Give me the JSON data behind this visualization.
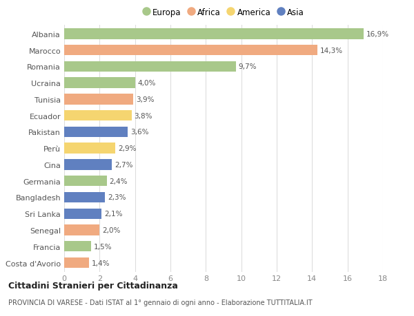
{
  "countries": [
    "Albania",
    "Marocco",
    "Romania",
    "Ucraina",
    "Tunisia",
    "Ecuador",
    "Pakistan",
    "Perù",
    "Cina",
    "Germania",
    "Bangladesh",
    "Sri Lanka",
    "Senegal",
    "Francia",
    "Costa d'Avorio"
  ],
  "values": [
    16.9,
    14.3,
    9.7,
    4.0,
    3.9,
    3.8,
    3.6,
    2.9,
    2.7,
    2.4,
    2.3,
    2.1,
    2.0,
    1.5,
    1.4
  ],
  "labels": [
    "16,9%",
    "14,3%",
    "9,7%",
    "4,0%",
    "3,9%",
    "3,8%",
    "3,6%",
    "2,9%",
    "2,7%",
    "2,4%",
    "2,3%",
    "2,1%",
    "2,0%",
    "1,5%",
    "1,4%"
  ],
  "continents": [
    "Europa",
    "Africa",
    "Europa",
    "Europa",
    "Africa",
    "America",
    "Asia",
    "America",
    "Asia",
    "Europa",
    "Asia",
    "Asia",
    "Africa",
    "Europa",
    "Africa"
  ],
  "continent_colors": {
    "Europa": "#a8c88a",
    "Africa": "#f0aa80",
    "America": "#f5d570",
    "Asia": "#6080c0"
  },
  "legend_entries": [
    "Europa",
    "Africa",
    "America",
    "Asia"
  ],
  "legend_colors": [
    "#a8c88a",
    "#f0aa80",
    "#f5d570",
    "#6080c0"
  ],
  "title": "Cittadini Stranieri per Cittadinanza",
  "subtitle": "PROVINCIA DI VARESE - Dati ISTAT al 1° gennaio di ogni anno - Elaborazione TUTTITALIA.IT",
  "xlim": [
    0,
    18
  ],
  "xticks": [
    0,
    2,
    4,
    6,
    8,
    10,
    12,
    14,
    16,
    18
  ],
  "background_color": "#ffffff",
  "grid_color": "#dddddd",
  "bar_height": 0.65
}
